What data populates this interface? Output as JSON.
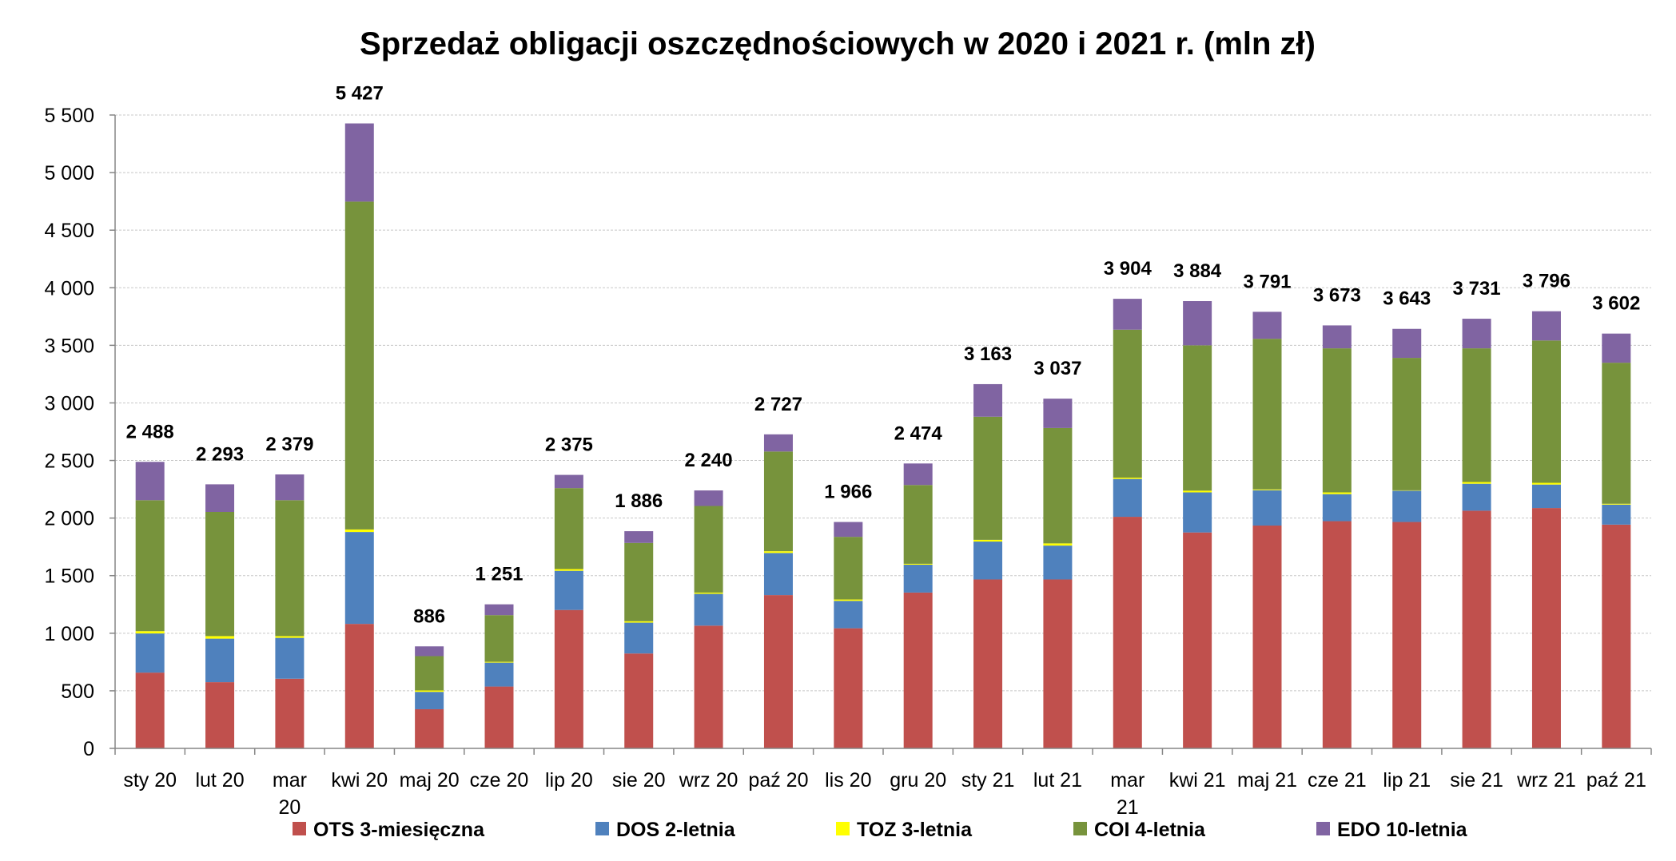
{
  "chart_data": {
    "type": "bar",
    "stacked": true,
    "title": "Sprzedaż obligacji oszczędnościowych w 2020 i 2021 r. (mln zł)",
    "xlabel": "",
    "ylabel": "",
    "ylim": [
      0,
      5500
    ],
    "yticks": [
      0,
      500,
      1000,
      1500,
      2000,
      2500,
      3000,
      3500,
      4000,
      4500,
      5000,
      5500
    ],
    "ytick_labels": [
      "0",
      "500",
      "1 000",
      "1 500",
      "2 000",
      "2 500",
      "3 000",
      "3 500",
      "4 000",
      "4 500",
      "5 000",
      "5 500"
    ],
    "grid": true,
    "legend_position": "bottom",
    "categories": [
      "sty 20",
      "lut 20",
      "mar 20",
      "kwi 20",
      "maj 20",
      "cze 20",
      "lip 20",
      "sie 20",
      "wrz 20",
      "paź 20",
      "lis 20",
      "gru 20",
      "sty 21",
      "lut 21",
      "mar 21",
      "kwi 21",
      "maj 21",
      "cze 21",
      "lip 21",
      "sie 21",
      "wrz 21",
      "paź 21"
    ],
    "series": [
      {
        "name": "OTS 3-miesięczna",
        "color": "#C0504D",
        "values": [
          658,
          575,
          605,
          1081,
          340,
          537,
          1202,
          824,
          1066,
          1331,
          1043,
          1353,
          1467,
          1467,
          2011,
          1875,
          1935,
          1973,
          1966,
          2064,
          2087,
          1943
        ]
      },
      {
        "name": "DOS 2-letnia",
        "color": "#4F81BD",
        "values": [
          340,
          378,
          355,
          798,
          151,
          208,
          340,
          268,
          276,
          366,
          238,
          242,
          329,
          294,
          329,
          348,
          307,
          235,
          272,
          234,
          204,
          174
        ]
      },
      {
        "name": "TOZ 3-letnia",
        "color": "#FFFF00",
        "values": [
          20,
          22,
          15,
          22,
          12,
          7,
          15,
          12,
          11,
          15,
          12,
          8,
          15,
          19,
          11,
          15,
          7,
          15,
          3,
          15,
          15,
          7
        ]
      },
      {
        "name": "COI 4-letnia",
        "color": "#77933C",
        "values": [
          1137,
          1078,
          1180,
          2847,
          298,
          405,
          703,
          680,
          752,
          866,
          544,
          684,
          1069,
          1002,
          1285,
          1262,
          1308,
          1251,
          1150,
          1161,
          1236,
          1225
        ]
      },
      {
        "name": "EDO 10-letnia",
        "color": "#8064A2",
        "values": [
          333,
          240,
          224,
          679,
          85,
          94,
          115,
          102,
          135,
          149,
          129,
          187,
          283,
          255,
          268,
          384,
          234,
          199,
          252,
          257,
          254,
          253
        ]
      }
    ],
    "totals": [
      2488,
      2293,
      2379,
      5427,
      886,
      1251,
      2375,
      1886,
      2240,
      2727,
      1966,
      2474,
      3163,
      3037,
      3904,
      3884,
      3791,
      3673,
      3643,
      3731,
      3796,
      3602
    ],
    "total_labels": [
      "2 488",
      "2 293",
      "2 379",
      "5 427",
      "886",
      "1 251",
      "2 375",
      "1 886",
      "2 240",
      "2 727",
      "1 966",
      "2 474",
      "3 163",
      "3 037",
      "3 904",
      "3 884",
      "3 791",
      "3 673",
      "3 643",
      "3 731",
      "3 796",
      "3 602"
    ]
  }
}
